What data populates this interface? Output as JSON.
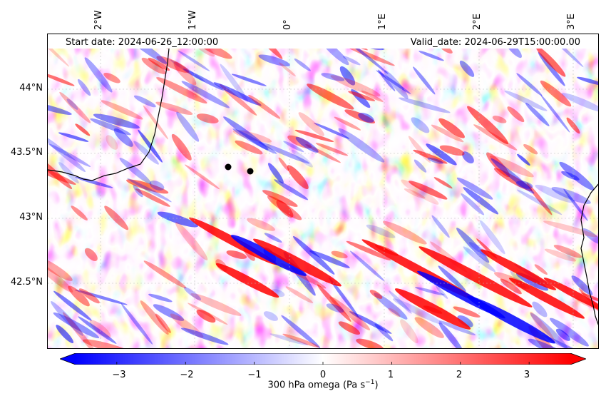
{
  "map": {
    "start_label": "Start date: 2024-06-26_12:00:00",
    "valid_label": "Valid_date: 2024-06-29T15:00:00.00",
    "longitude_ticks": [
      "2°W",
      "1°W",
      "0°",
      "1°E",
      "2°E",
      "3°E"
    ],
    "latitude_ticks": [
      "44°N",
      "43.5°N",
      "43°N",
      "42.5°N"
    ],
    "field": "300 hPa omega",
    "points_count": 2
  },
  "colorbar": {
    "label_prefix": "300 hPa omega (Pa s",
    "label_exp": "−1",
    "label_suffix": ")",
    "ticks": [
      "−3",
      "−2",
      "−1",
      "0",
      "1",
      "2",
      "3"
    ],
    "min": -3.6,
    "max": 3.6,
    "low_color": "#0000ff",
    "mid_color": "#ffffff",
    "high_color": "#ff0000"
  }
}
